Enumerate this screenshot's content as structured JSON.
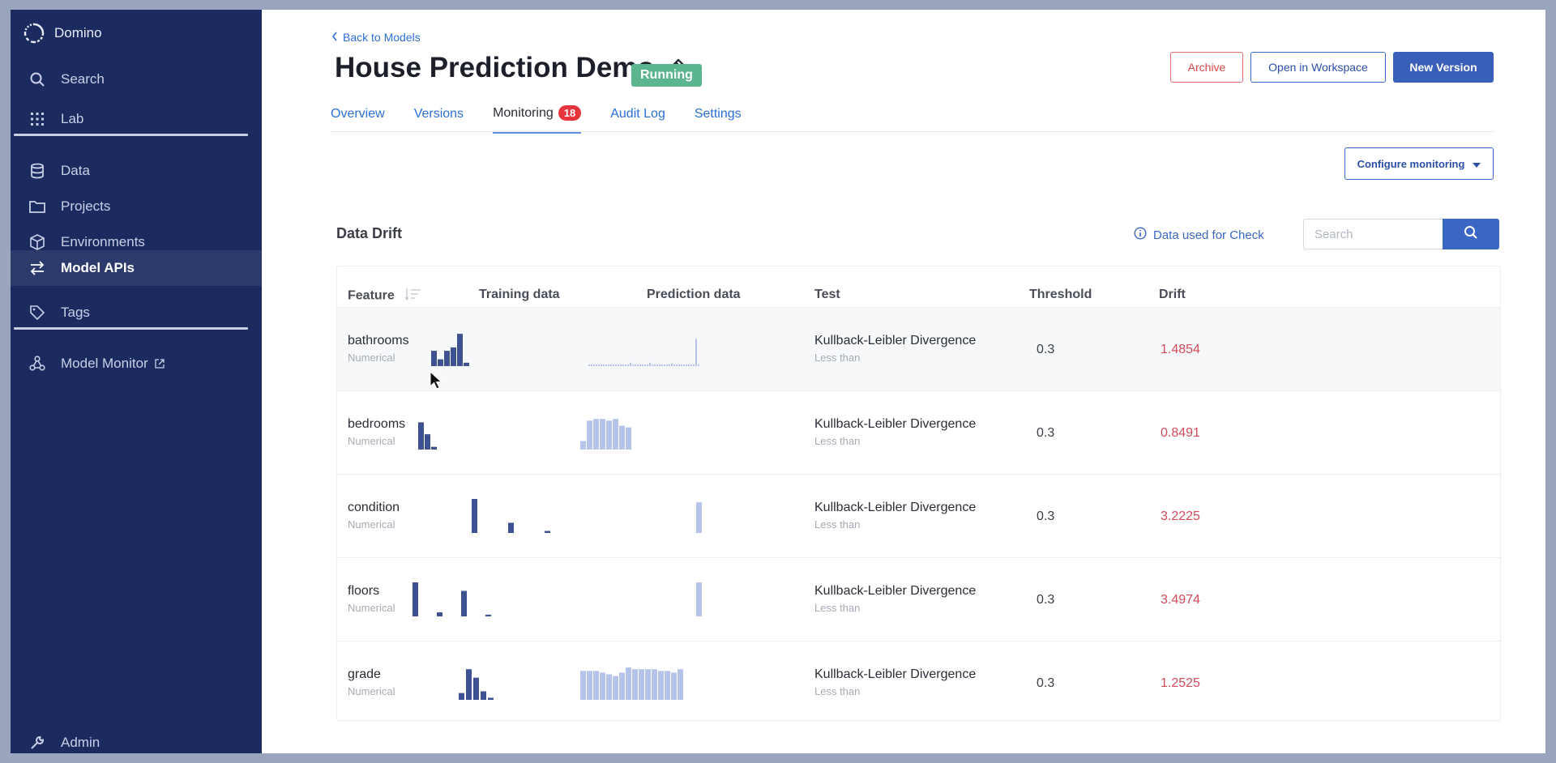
{
  "app": {
    "name": "Domino"
  },
  "sidebar": {
    "items": [
      {
        "label": "Search",
        "icon": "search-icon"
      },
      {
        "label": "Lab",
        "icon": "grid-icon"
      },
      {
        "label": "Data",
        "icon": "database-icon"
      },
      {
        "label": "Projects",
        "icon": "folder-icon"
      },
      {
        "label": "Environments",
        "icon": "cube-icon"
      },
      {
        "label": "Model APIs",
        "icon": "swap-icon",
        "active": true
      },
      {
        "label": "Tags",
        "icon": "tag-icon"
      },
      {
        "label": "Model Monitor",
        "icon": "network-icon",
        "external": true
      },
      {
        "label": "Admin",
        "icon": "wrench-icon"
      }
    ]
  },
  "header": {
    "back_label": "Back to Models",
    "title": "House Prediction Demo",
    "status": "Running",
    "buttons": {
      "archive": "Archive",
      "open_workspace": "Open in Workspace",
      "new_version": "New Version"
    }
  },
  "tabs": [
    {
      "label": "Overview"
    },
    {
      "label": "Versions"
    },
    {
      "label": "Monitoring",
      "badge": "18",
      "active": true
    },
    {
      "label": "Audit Log"
    },
    {
      "label": "Settings"
    }
  ],
  "configure_label": "Configure monitoring",
  "section": {
    "title": "Data Drift",
    "info_label": "Data used for Check",
    "search_placeholder": "Search"
  },
  "table": {
    "columns": [
      "Feature",
      "Training data",
      "Prediction data",
      "Test",
      "Threshold",
      "Drift"
    ],
    "rows": [
      {
        "feature": "bathrooms",
        "type": "Numerical",
        "test": "Kullback-Leibler Divergence",
        "op": "Less than",
        "threshold": "0.3",
        "drift": "1.4854",
        "training": [
          0,
          0.45,
          0.2,
          0.45,
          0.55,
          0.95,
          0.1
        ],
        "prediction": [
          0.05,
          0.05,
          0.05,
          0.05,
          0.05,
          0.05,
          0.05,
          0.05,
          0.05,
          0.05,
          0.05,
          0.05,
          0.05,
          0.05,
          0.05,
          0.05,
          0.05,
          0.1,
          0.05,
          0.05,
          0.05,
          0.05,
          0.05,
          0.05,
          0.05,
          0.1,
          0.05,
          0.05,
          0.05,
          0.05,
          0.05,
          0.05,
          0.05,
          0.05,
          0.08,
          0.05,
          0.05,
          0.05,
          0.05,
          0.05,
          0.05,
          0.05,
          0.05,
          0.05,
          0.8,
          0.05
        ]
      },
      {
        "feature": "bedrooms",
        "type": "Numerical",
        "test": "Kullback-Leibler Divergence",
        "op": "Less than",
        "threshold": "0.3",
        "drift": "0.8491",
        "training": [
          0.8,
          0.45,
          0.08
        ],
        "prediction": [
          0.25,
          0.85,
          0.9,
          0.9,
          0.85,
          0.9,
          0.7,
          0.65
        ]
      },
      {
        "feature": "condition",
        "type": "Numerical",
        "test": "Kullback-Leibler Divergence",
        "op": "Less than",
        "threshold": "0.3",
        "drift": "3.2225",
        "training": [
          1.0,
          0.3,
          0.06
        ],
        "prediction": [
          0.9
        ]
      },
      {
        "feature": "floors",
        "type": "Numerical",
        "test": "Kullback-Leibler Divergence",
        "op": "Less than",
        "threshold": "0.3",
        "drift": "3.4974",
        "training": [
          1.0,
          0.12,
          0.75,
          0.05
        ],
        "prediction": [
          1.0
        ]
      },
      {
        "feature": "grade",
        "type": "Numerical",
        "test": "Kullback-Leibler Divergence",
        "op": "Less than",
        "threshold": "0.3",
        "drift": "1.2525",
        "training": [
          0.2,
          0.9,
          0.65,
          0.25,
          0.06
        ],
        "prediction": [
          0.85,
          0.85,
          0.85,
          0.8,
          0.75,
          0.7,
          0.8,
          0.95,
          0.9,
          0.9,
          0.9,
          0.9,
          0.85,
          0.85,
          0.8,
          0.9
        ]
      }
    ]
  },
  "colors": {
    "sidebar": "#1c2b5f",
    "accent": "#3a66c4",
    "training_bar": "#3e5292",
    "prediction_bar": "#b6c4ec",
    "drift_text": "#d34a5a",
    "badge_running": "#5bb58e",
    "badge_count": "#e8343c"
  }
}
